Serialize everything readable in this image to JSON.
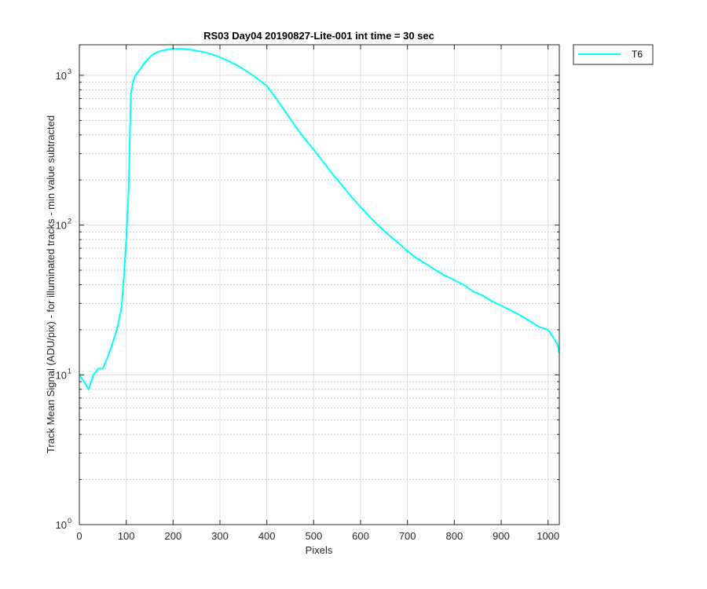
{
  "chart_data": {
    "type": "line",
    "title": "RS03 Day04 20190827-Lite-001 int time = 30 sec",
    "xlabel": "Pixels",
    "ylabel": "Track Mean Signal (ADU/pix) - for illuminated tracks - min value subtracted",
    "xlim": [
      0,
      1024
    ],
    "ylim": [
      1,
      1500
    ],
    "yscale": "log",
    "grid": true,
    "legend_position": "outside-top-right",
    "x_ticks": [
      "0",
      "100",
      "200",
      "300",
      "400",
      "500",
      "600",
      "700",
      "800",
      "900",
      "1000"
    ],
    "y_ticks": [
      {
        "base": "10",
        "exp": "0"
      },
      {
        "base": "10",
        "exp": "1"
      },
      {
        "base": "10",
        "exp": "2"
      },
      {
        "base": "10",
        "exp": "3"
      }
    ],
    "series": [
      {
        "name": "T6",
        "color": "#00ffff",
        "x": [
          0,
          10,
          20,
          30,
          40,
          50,
          60,
          70,
          80,
          90,
          95,
          100,
          105,
          110,
          115,
          120,
          130,
          140,
          150,
          160,
          170,
          180,
          190,
          200,
          210,
          220,
          230,
          240,
          250,
          260,
          270,
          280,
          290,
          300,
          320,
          340,
          360,
          380,
          400,
          420,
          440,
          460,
          480,
          500,
          520,
          540,
          560,
          580,
          600,
          620,
          640,
          660,
          680,
          700,
          720,
          740,
          760,
          780,
          800,
          820,
          840,
          860,
          880,
          900,
          920,
          940,
          960,
          980,
          1000,
          1010,
          1020,
          1024
        ],
        "y": [
          10,
          9,
          8,
          10,
          11,
          11,
          13,
          16,
          20,
          28,
          45,
          80,
          170,
          750,
          920,
          1000,
          1100,
          1220,
          1320,
          1400,
          1440,
          1470,
          1490,
          1500,
          1500,
          1500,
          1490,
          1480,
          1460,
          1440,
          1420,
          1390,
          1360,
          1320,
          1240,
          1150,
          1050,
          950,
          850,
          700,
          570,
          460,
          380,
          320,
          265,
          220,
          185,
          155,
          132,
          113,
          98,
          86,
          76,
          67,
          60,
          55,
          50,
          46,
          43,
          40,
          36,
          34,
          31,
          29,
          27,
          25,
          23,
          21,
          20,
          18,
          16,
          14
        ]
      }
    ]
  }
}
